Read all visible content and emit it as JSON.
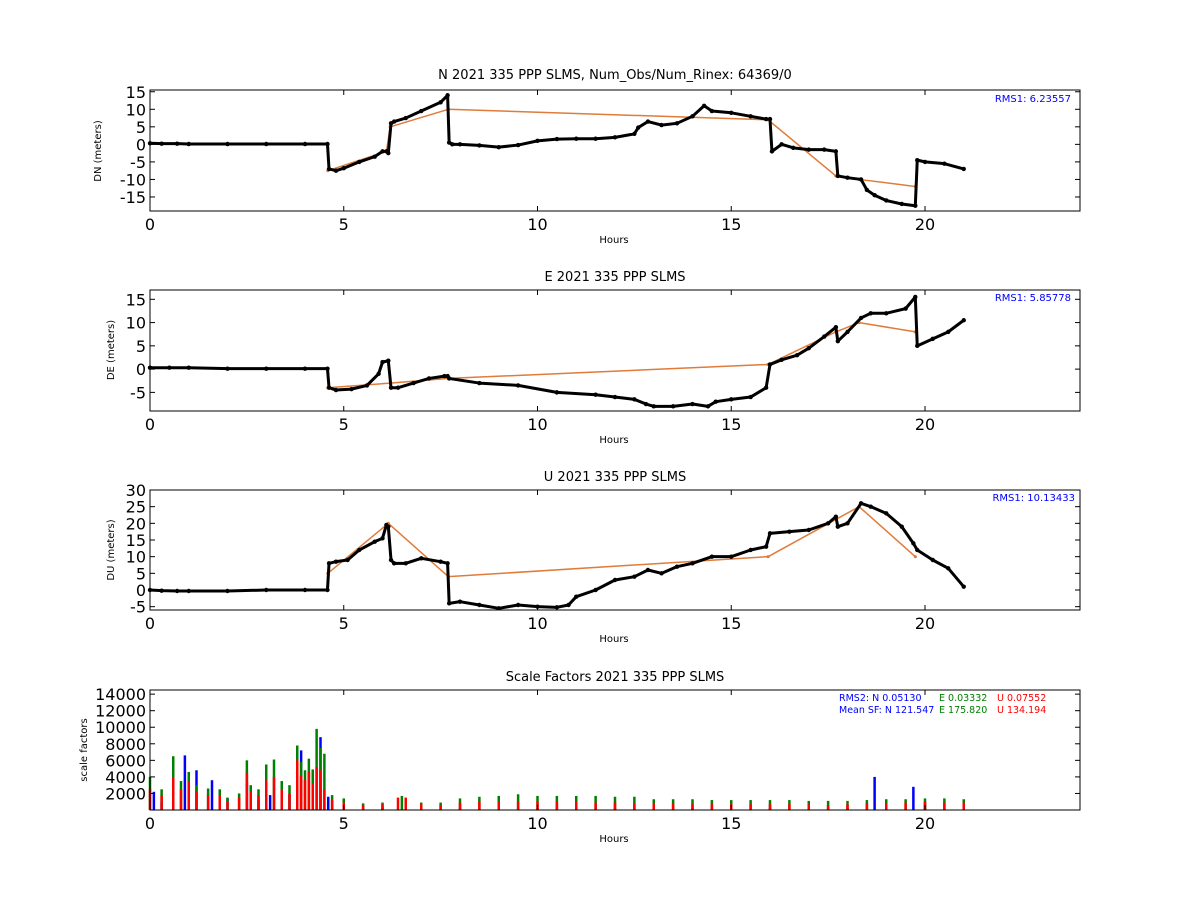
{
  "chart_data": [
    {
      "type": "scatter",
      "title": "N 2021 335 PPP  SLMS, Num_Obs/Num_Rinex: 64369/0",
      "xlabel": "Hours",
      "ylabel": "DN (meters)",
      "xlim": [
        0,
        24
      ],
      "ylim": [
        -19,
        15.5
      ],
      "xticks": [
        0,
        5,
        10,
        15,
        20
      ],
      "yticks": [
        -15,
        -10,
        -5,
        0,
        5,
        10,
        15
      ],
      "annotation": "RMS1:  6.23557",
      "series": [
        {
          "color": "#e07b39",
          "x": [
            4.59,
            6.1,
            6.2,
            7.7,
            15.95,
            17.7,
            18.3,
            19.75
          ],
          "y": [
            -7.5,
            -2,
            5,
            10,
            7,
            -9,
            -10,
            -12
          ]
        },
        {
          "color": "#000000",
          "x": [
            0.0,
            0.3,
            0.7,
            1.0,
            2.0,
            3.0,
            4.0,
            4.58,
            4.62,
            4.8,
            5.0,
            5.4,
            5.8,
            6.0,
            6.1,
            6.15,
            6.22,
            6.3,
            6.6,
            7.0,
            7.5,
            7.68,
            7.72,
            7.8,
            8.0,
            8.5,
            9.0,
            9.5,
            10.0,
            10.5,
            11.0,
            11.5,
            12.0,
            12.5,
            12.6,
            12.85,
            13.2,
            13.6,
            14.0,
            14.3,
            14.5,
            15.0,
            15.5,
            15.9,
            16.0,
            16.05,
            16.3,
            16.6,
            17.0,
            17.4,
            17.7,
            17.75,
            18.0,
            18.35,
            18.5,
            18.7,
            19.0,
            19.4,
            19.75,
            19.8,
            20.0,
            20.5,
            21.0
          ],
          "y": [
            0.3,
            0.2,
            0.2,
            0.1,
            0.1,
            0.1,
            0.1,
            0.1,
            -7,
            -7.5,
            -6.8,
            -5,
            -3.5,
            -2,
            -2,
            -2.5,
            6,
            6.5,
            7.5,
            9.5,
            12,
            14,
            0.5,
            0,
            0,
            -0.3,
            -0.8,
            -0.2,
            1,
            1.5,
            1.6,
            1.6,
            2,
            3,
            4.8,
            6.5,
            5.5,
            6,
            8,
            11,
            9.5,
            9,
            8,
            7.2,
            7.2,
            -2,
            0,
            -1,
            -1.5,
            -1.5,
            -2,
            -9,
            -9.5,
            -10,
            -13,
            -14.5,
            -16,
            -17,
            -17.5,
            -4.5,
            -5,
            -5.5,
            -7
          ]
        }
      ]
    },
    {
      "type": "scatter",
      "title": "E 2021 335 PPP  SLMS",
      "xlabel": "Hours",
      "ylabel": "DE (meters)",
      "xlim": [
        0,
        24
      ],
      "ylim": [
        -9,
        17
      ],
      "xticks": [
        0,
        5,
        10,
        15,
        20
      ],
      "yticks": [
        -5,
        0,
        5,
        10,
        15
      ],
      "annotation": "RMS1:  5.85778",
      "series": [
        {
          "color": "#e07b39",
          "x": [
            4.59,
            6.2,
            7.7,
            15.95,
            17.7,
            18.3,
            19.75
          ],
          "y": [
            -4,
            -3,
            -2,
            1,
            8,
            10,
            8
          ]
        },
        {
          "color": "#000000",
          "x": [
            0.0,
            0.5,
            1.0,
            2.0,
            3.0,
            4.0,
            4.58,
            4.62,
            4.8,
            5.2,
            5.6,
            5.9,
            6.0,
            6.15,
            6.22,
            6.4,
            6.8,
            7.2,
            7.6,
            7.68,
            7.72,
            8.5,
            9.5,
            10.5,
            11.5,
            12.0,
            12.5,
            12.8,
            13.0,
            13.5,
            14.0,
            14.4,
            14.6,
            15.0,
            15.5,
            15.9,
            16.0,
            16.3,
            16.7,
            17.0,
            17.4,
            17.7,
            17.75,
            18.0,
            18.35,
            18.6,
            19.0,
            19.5,
            19.75,
            19.8,
            20.2,
            20.6,
            21.0
          ],
          "y": [
            0.3,
            0.3,
            0.3,
            0.1,
            0.1,
            0.1,
            0.1,
            -4,
            -4.5,
            -4.3,
            -3.5,
            -1,
            1.5,
            1.8,
            -4,
            -4,
            -3,
            -2,
            -1.5,
            -1.5,
            -2,
            -3,
            -3.5,
            -5,
            -5.5,
            -6,
            -6.5,
            -7.5,
            -8,
            -8,
            -7.5,
            -8,
            -7,
            -6.5,
            -6,
            -4,
            1,
            2,
            3,
            4.5,
            7,
            9,
            6,
            8,
            11,
            12,
            12,
            13,
            15.5,
            5,
            6.5,
            8,
            10.5
          ]
        }
      ]
    },
    {
      "type": "scatter",
      "title": "U 2021 335 PPP  SLMS",
      "xlabel": "Hours",
      "ylabel": "DU (meters)",
      "xlim": [
        0,
        24
      ],
      "ylim": [
        -6,
        30
      ],
      "xticks": [
        0,
        5,
        10,
        15,
        20
      ],
      "yticks": [
        -5,
        0,
        5,
        10,
        15,
        20,
        25,
        30
      ],
      "annotation": "RMS1: 10.13433",
      "series": [
        {
          "color": "#e07b39",
          "x": [
            4.59,
            6.15,
            7.7,
            15.95,
            18.3,
            19.75
          ],
          "y": [
            5,
            20,
            4,
            10,
            25,
            10
          ]
        },
        {
          "color": "#000000",
          "x": [
            0.0,
            0.3,
            0.7,
            1.0,
            2.0,
            3.0,
            4.0,
            4.58,
            4.62,
            4.8,
            5.1,
            5.4,
            5.8,
            6.0,
            6.1,
            6.15,
            6.22,
            6.3,
            6.6,
            7.0,
            7.5,
            7.68,
            7.72,
            8.0,
            8.5,
            9.0,
            9.5,
            10.0,
            10.5,
            10.8,
            11.0,
            11.5,
            12.0,
            12.5,
            12.85,
            13.2,
            13.6,
            14.0,
            14.5,
            15.0,
            15.5,
            15.9,
            16.0,
            16.5,
            17.0,
            17.5,
            17.7,
            17.75,
            18.0,
            18.35,
            18.6,
            19.0,
            19.4,
            19.7,
            19.8,
            20.2,
            20.6,
            21.0
          ],
          "y": [
            0,
            -0.2,
            -0.3,
            -0.3,
            -0.3,
            0,
            0,
            0,
            8,
            8.5,
            9,
            12,
            14.5,
            15.5,
            19.5,
            19,
            9,
            8,
            8,
            9.5,
            8.5,
            8,
            -4,
            -3.5,
            -4.5,
            -5.5,
            -4.5,
            -5,
            -5.2,
            -4.5,
            -2,
            0,
            3,
            4,
            6,
            5,
            7,
            8,
            10,
            10,
            12,
            13,
            17,
            17.5,
            18,
            20,
            22,
            19,
            20,
            26,
            25,
            23,
            19,
            14,
            12,
            9,
            6.5,
            1
          ]
        }
      ]
    },
    {
      "type": "scatter",
      "title": "Scale Factors 2021 335 PPP  SLMS",
      "xlabel": "Hours",
      "ylabel": "scale factors",
      "xlim": [
        0,
        24
      ],
      "ylim": [
        0,
        14500
      ],
      "xticks": [
        0,
        5,
        10,
        15,
        20
      ],
      "yticks": [
        2000,
        4000,
        6000,
        8000,
        10000,
        12000,
        14000
      ],
      "annotation_rows": [
        {
          "items": [
            {
              "text": "RMS2: N  0.05130",
              "color": "#0000ff"
            },
            {
              "text": "E  0.03332",
              "color": "#008000"
            },
            {
              "text": "U  0.07552",
              "color": "#ff0000"
            }
          ]
        },
        {
          "items": [
            {
              "text": "Mean SF: N 121.547",
              "color": "#0000ff"
            },
            {
              "text": "E 175.820",
              "color": "#008000"
            },
            {
              "text": "U 134.194",
              "color": "#ff0000"
            }
          ]
        }
      ],
      "series": [
        {
          "color": "#0000ff",
          "x": [
            0.1,
            0.3,
            0.6,
            0.9,
            1.2,
            1.6,
            2.0,
            2.5,
            2.8,
            3.1,
            3.6,
            3.9,
            4.2,
            4.4,
            4.6,
            5.0,
            6.0,
            7.0,
            8.0,
            9.0,
            10.0,
            11.0,
            12.0,
            13.0,
            14.0,
            15.0,
            16.0,
            17.0,
            18.0,
            18.7,
            19.0,
            19.7,
            20.0,
            21.0
          ],
          "y": [
            2200,
            900,
            2800,
            6600,
            4800,
            3600,
            1400,
            3300,
            1200,
            1800,
            1900,
            7200,
            4200,
            8800,
            1600,
            300,
            300,
            300,
            250,
            250,
            250,
            250,
            250,
            250,
            250,
            250,
            250,
            250,
            250,
            4000,
            900,
            2800,
            900,
            800
          ]
        },
        {
          "color": "#008000",
          "x": [
            0.0,
            0.3,
            0.6,
            0.8,
            1.0,
            1.2,
            1.5,
            1.8,
            2.0,
            2.3,
            2.5,
            2.6,
            2.8,
            3.0,
            3.2,
            3.4,
            3.6,
            3.8,
            3.9,
            4.0,
            4.1,
            4.2,
            4.3,
            4.4,
            4.5,
            4.7,
            5.0,
            5.5,
            6.0,
            6.5,
            7.0,
            7.5,
            8.0,
            8.5,
            9.0,
            9.5,
            10.0,
            10.5,
            11.0,
            11.5,
            12.0,
            12.5,
            13.0,
            13.5,
            14.0,
            14.5,
            15.0,
            15.5,
            16.0,
            16.5,
            17.0,
            17.5,
            18.0,
            18.5,
            19.0,
            19.5,
            20.0,
            20.5,
            21.0
          ],
          "y": [
            4000,
            2500,
            6500,
            3500,
            4600,
            3000,
            2600,
            2500,
            1500,
            2000,
            6000,
            3000,
            2500,
            5500,
            6100,
            3500,
            3000,
            7800,
            5800,
            4800,
            6200,
            4900,
            9800,
            7500,
            6800,
            1800,
            1400,
            800,
            900,
            1700,
            900,
            900,
            1400,
            1600,
            1700,
            1900,
            1700,
            1700,
            1700,
            1700,
            1600,
            1600,
            1300,
            1300,
            1300,
            1200,
            1200,
            1200,
            1200,
            1200,
            1100,
            1100,
            1100,
            1200,
            1300,
            1300,
            1400,
            1400,
            1300
          ]
        },
        {
          "color": "#ff0000",
          "x": [
            0.0,
            0.3,
            0.6,
            0.8,
            1.0,
            1.2,
            1.5,
            1.8,
            2.0,
            2.3,
            2.5,
            2.6,
            2.8,
            3.0,
            3.2,
            3.4,
            3.6,
            3.8,
            3.9,
            4.0,
            4.1,
            4.2,
            4.3,
            4.4,
            4.5,
            4.7,
            5.0,
            5.5,
            6.0,
            6.4,
            6.6,
            7.0,
            7.5,
            8.0,
            8.5,
            9.0,
            9.5,
            10.0,
            10.5,
            11.0,
            11.5,
            12.0,
            12.5,
            13.0,
            13.5,
            14.0,
            14.5,
            15.0,
            15.5,
            16.0,
            16.5,
            17.0,
            17.5,
            18.0,
            18.5,
            19.0,
            19.5,
            20.0,
            20.5,
            21.0
          ],
          "y": [
            2500,
            1800,
            4000,
            2500,
            3400,
            2200,
            1800,
            1700,
            1000,
            1500,
            4500,
            2200,
            1800,
            3600,
            4000,
            2400,
            2000,
            6000,
            4200,
            3600,
            4600,
            3200,
            5200,
            4800,
            2500,
            1200,
            900,
            600,
            700,
            1500,
            1500,
            700,
            600,
            900,
            1000,
            1000,
            1000,
            1000,
            1000,
            1000,
            900,
            900,
            800,
            800,
            800,
            700,
            700,
            700,
            700,
            700,
            700,
            700,
            600,
            700,
            800,
            800,
            900,
            1000,
            900,
            900
          ]
        }
      ]
    }
  ]
}
